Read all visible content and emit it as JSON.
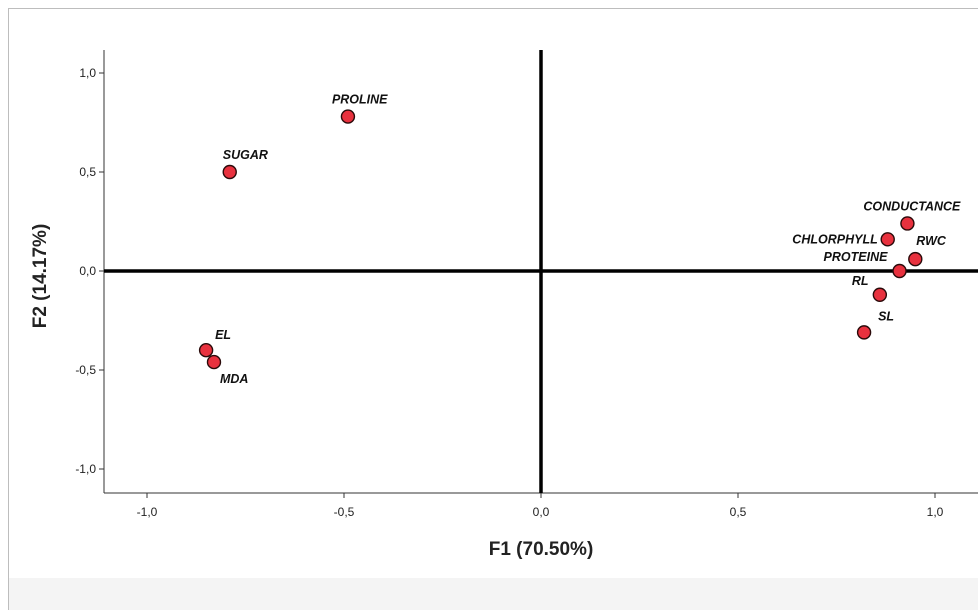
{
  "chart_data": {
    "type": "scatter",
    "title": "",
    "xlabel": "F1 (70.50%)",
    "ylabel": "F2 (14.17%)",
    "xlim": [
      -1.1,
      1.1
    ],
    "ylim": [
      -1.1,
      1.1
    ],
    "x_ticks": [
      "-1,0",
      "-0,5",
      "0,0",
      "0,5",
      "1,0"
    ],
    "y_ticks": [
      "1,0",
      "0,5",
      "0,0",
      "-0,5",
      "-1,0"
    ],
    "x_tick_values": [
      -1.0,
      -0.5,
      0.0,
      0.5,
      1.0
    ],
    "y_tick_values": [
      1.0,
      0.5,
      0.0,
      -0.5,
      -1.0
    ],
    "grid": false,
    "marker_color": "#e8313e",
    "points": [
      {
        "label": "PROLINE",
        "x": -0.49,
        "y": 0.78
      },
      {
        "label": "SUGAR",
        "x": -0.79,
        "y": 0.5
      },
      {
        "label": "EL",
        "x": -0.85,
        "y": -0.4
      },
      {
        "label": "MDA",
        "x": -0.83,
        "y": -0.46
      },
      {
        "label": "CONDUCTANCE",
        "x": 0.93,
        "y": 0.24
      },
      {
        "label": "CHLORPHYLL",
        "x": 0.88,
        "y": 0.16
      },
      {
        "label": "RWC",
        "x": 0.95,
        "y": 0.06
      },
      {
        "label": "PROTEINE",
        "x": 0.91,
        "y": 0.0
      },
      {
        "label": "RL",
        "x": 0.86,
        "y": -0.12
      },
      {
        "label": "SL",
        "x": 0.82,
        "y": -0.31
      }
    ]
  }
}
